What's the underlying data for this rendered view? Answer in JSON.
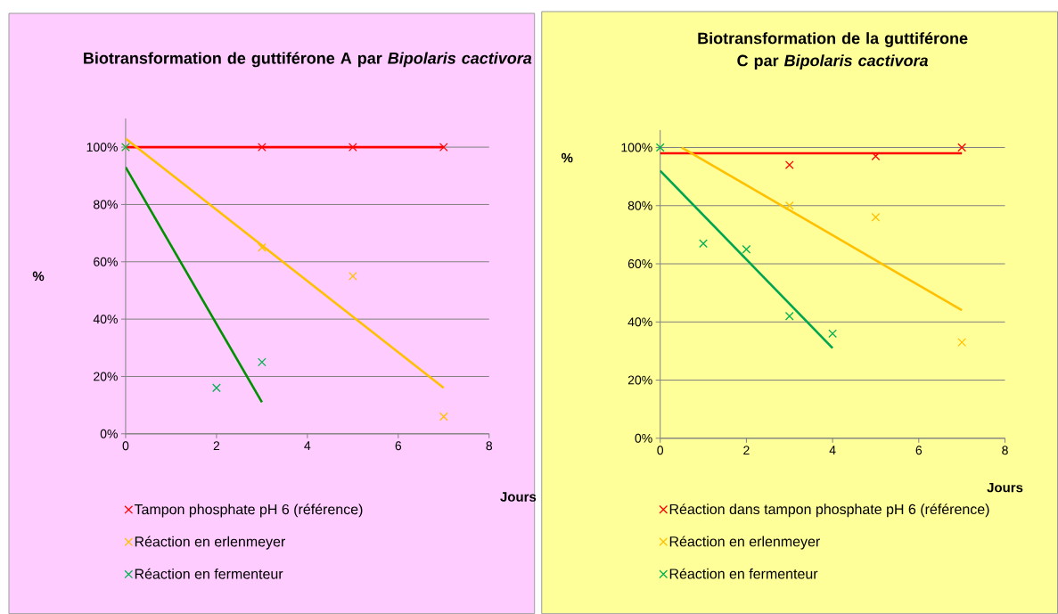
{
  "chart_data": [
    {
      "type": "scatter",
      "title": "Biotransformation de guttiférone A par *Bipolaris cactivora*",
      "xlabel": "Jours",
      "ylabel": "%",
      "xlim": [
        0,
        8
      ],
      "xticks": [
        0,
        2,
        4,
        6,
        8
      ],
      "ylim": [
        0,
        110
      ],
      "yticks": [
        {
          "value": 0,
          "label": "0%"
        },
        {
          "value": 20,
          "label": "20%"
        },
        {
          "value": 40,
          "label": "40%"
        },
        {
          "value": 60,
          "label": "60%"
        },
        {
          "value": 80,
          "label": "80%"
        },
        {
          "value": 100,
          "label": "100%"
        }
      ],
      "grid": "y",
      "legend": "bottom",
      "marker": "cross",
      "series": [
        {
          "name": "Tampon phosphate pH 6 (référence)",
          "color": "#ff0000",
          "x": [
            3,
            5,
            7
          ],
          "values": [
            100,
            100,
            100
          ]
        },
        {
          "name": "Réaction en erlenmeyer",
          "color": "#ffc000",
          "x": [
            0,
            3,
            5,
            7
          ],
          "values": [
            100,
            65,
            55,
            6
          ]
        },
        {
          "name": "Réaction en fermenteur",
          "color": "#00b050",
          "x": [
            0,
            2,
            3
          ],
          "values": [
            100,
            16,
            25
          ]
        },
        {
          "type": "line",
          "color": "#ff0000",
          "marker": "none",
          "x": [
            0,
            7
          ],
          "values": [
            100,
            100
          ]
        },
        {
          "type": "line",
          "color": "#ffc000",
          "marker": "none",
          "x": [
            0,
            7
          ],
          "values": [
            103,
            16
          ]
        },
        {
          "type": "line",
          "color": "#009000",
          "marker": "none",
          "x": [
            0,
            3
          ],
          "values": [
            93,
            11
          ]
        }
      ]
    },
    {
      "type": "scatter",
      "title": "Biotransformation de la guttiférone C par *Bipolaris cactivora*",
      "xlabel": "Jours",
      "ylabel": "%",
      "xlim": [
        0,
        8
      ],
      "xticks": [
        0,
        2,
        4,
        6,
        8
      ],
      "ylim": [
        0,
        106
      ],
      "yticks": [
        {
          "value": 0,
          "label": "0%"
        },
        {
          "value": 20,
          "label": "20%"
        },
        {
          "value": 40,
          "label": "40%"
        },
        {
          "value": 60,
          "label": "60%"
        },
        {
          "value": 80,
          "label": "80%"
        },
        {
          "value": 100,
          "label": "100%"
        }
      ],
      "grid": "y",
      "legend": "bottom",
      "marker": "cross",
      "series": [
        {
          "name": "Réaction dans tampon phosphate pH 6 (référence)",
          "color": "#ff0000",
          "x": [
            3,
            5,
            7
          ],
          "values": [
            94,
            97,
            100
          ]
        },
        {
          "name": "Réaction en erlenmeyer",
          "color": "#ffc000",
          "x": [
            3,
            5,
            7
          ],
          "values": [
            80,
            76,
            33
          ]
        },
        {
          "name": "Réaction en fermenteur",
          "color": "#00b050",
          "x": [
            0,
            1,
            2,
            3,
            4
          ],
          "values": [
            100,
            67,
            65,
            42,
            36
          ]
        },
        {
          "type": "line",
          "color": "#ff0000",
          "marker": "none",
          "x": [
            0,
            7
          ],
          "values": [
            98,
            98
          ]
        },
        {
          "type": "line",
          "color": "#ffc000",
          "marker": "none",
          "x": [
            0.5,
            7
          ],
          "values": [
            100,
            44
          ]
        },
        {
          "type": "line",
          "color": "#00a550",
          "marker": "none",
          "x": [
            0,
            4
          ],
          "values": [
            92,
            31
          ]
        }
      ]
    }
  ]
}
